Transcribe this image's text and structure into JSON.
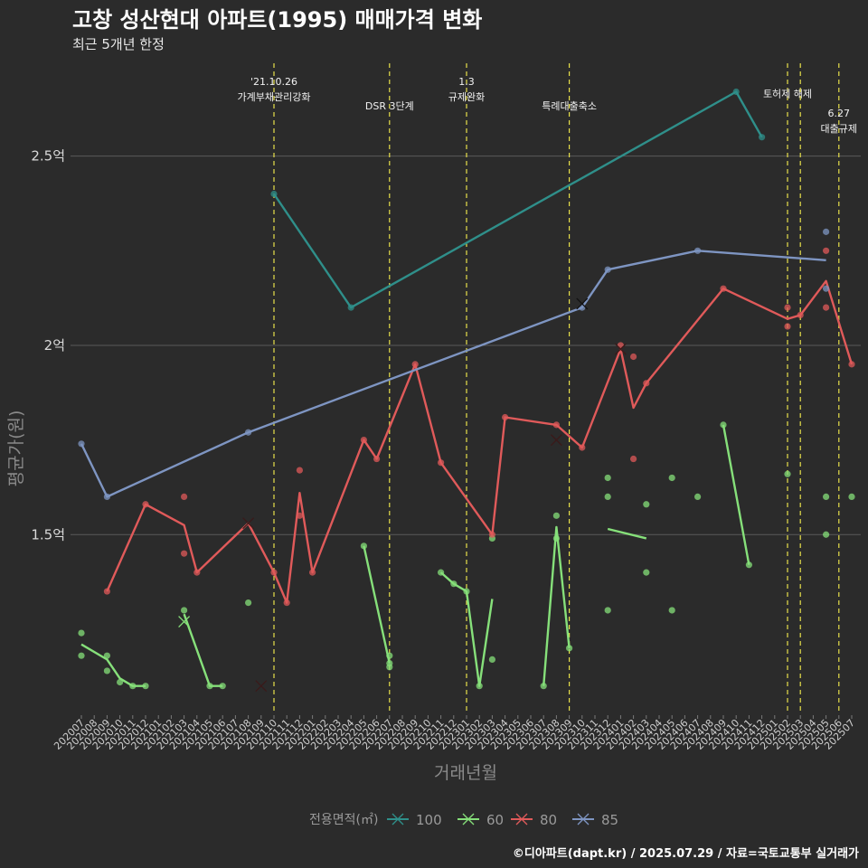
{
  "chart_data": {
    "type": "line",
    "title": "고창 성산현대 아파트(1995) 매매가격 변화",
    "subtitle": "최근 5개년 한정",
    "xlabel": "거래년월",
    "ylabel": "평균가(원)",
    "caption": "©디아파트(dapt.kr) / 2025.07.29 / 자료=국토교통부 실거래가",
    "categories": [
      "202007",
      "202008",
      "202009",
      "202010",
      "202011",
      "202012",
      "202101",
      "202102",
      "202103",
      "202104",
      "202105",
      "202106",
      "202107",
      "202108",
      "202109",
      "202110",
      "202111",
      "202112",
      "202201",
      "202202",
      "202203",
      "202204",
      "202205",
      "202206",
      "202207",
      "202208",
      "202209",
      "202210",
      "202211",
      "202212",
      "202301",
      "202302",
      "202303",
      "202304",
      "202305",
      "202306",
      "202307",
      "202308",
      "202309",
      "202310",
      "202311",
      "202312",
      "202401",
      "202402",
      "202403",
      "202404",
      "202405",
      "202406",
      "202407",
      "202408",
      "202409",
      "202410",
      "202411",
      "202412",
      "202501",
      "202502",
      "202503",
      "202504",
      "202505",
      "202506",
      "202507"
    ],
    "y_ticks": [
      {
        "value": 15000,
        "label": "1.5억"
      },
      {
        "value": 20000,
        "label": "2억"
      },
      {
        "value": 25000,
        "label": "2.5억"
      }
    ],
    "ylim": [
      10300,
      27500
    ],
    "grid": true,
    "legend": {
      "title": "전용면적(㎡)",
      "position": "bottom"
    },
    "series": [
      {
        "name": "100",
        "color": "#2f8f8a",
        "line": [
          [
            "202110",
            24000
          ],
          [
            "202204",
            21000
          ],
          [
            "202410",
            26700
          ],
          [
            "202412",
            25500
          ]
        ],
        "points": [
          [
            "202110",
            24000
          ],
          [
            "202204",
            21000
          ],
          [
            "202410",
            26700
          ],
          [
            "202412",
            25500
          ]
        ],
        "crosses": []
      },
      {
        "name": "60",
        "color": "#86e07a",
        "line_segments": [
          [
            [
              "202007",
              12100
            ],
            [
              "202009",
              11700
            ],
            [
              "202010",
              11200
            ],
            [
              "202011",
              11000
            ],
            [
              "202012",
              11000
            ]
          ],
          [
            [
              "202103",
              12900
            ],
            [
              "202105",
              11000
            ],
            [
              "202106",
              11000
            ]
          ],
          [
            [
              "202205",
              14700
            ],
            [
              "202207",
              11600
            ]
          ],
          [
            [
              "202211",
              14000
            ],
            [
              "202212",
              13700
            ],
            [
              "202301",
              13500
            ],
            [
              "202302",
              11000
            ],
            [
              "202303",
              13300
            ]
          ],
          [
            [
              "202307",
              11000
            ],
            [
              "202308",
              15200
            ],
            [
              "202309",
              12000
            ]
          ],
          [
            [
              "202312",
              15150
            ],
            [
              "202403",
              14900
            ]
          ],
          [
            [
              "202409",
              17900
            ],
            [
              "202411",
              14200
            ]
          ]
        ],
        "points": [
          [
            "202007",
            12400
          ],
          [
            "202007",
            11800
          ],
          [
            "202009",
            11800
          ],
          [
            "202009",
            11400
          ],
          [
            "202010",
            11100
          ],
          [
            "202011",
            11000
          ],
          [
            "202012",
            11000
          ],
          [
            "202103",
            13000
          ],
          [
            "202105",
            11000
          ],
          [
            "202106",
            11000
          ],
          [
            "202108",
            13200
          ],
          [
            "202205",
            14700
          ],
          [
            "202207",
            11800
          ],
          [
            "202207",
            11600
          ],
          [
            "202207",
            11500
          ],
          [
            "202211",
            14000
          ],
          [
            "202212",
            13700
          ],
          [
            "202301",
            13500
          ],
          [
            "202302",
            11000
          ],
          [
            "202303",
            14900
          ],
          [
            "202303",
            11700
          ],
          [
            "202307",
            11000
          ],
          [
            "202308",
            15500
          ],
          [
            "202308",
            14900
          ],
          [
            "202309",
            12000
          ],
          [
            "202312",
            16500
          ],
          [
            "202312",
            16000
          ],
          [
            "202312",
            13000
          ],
          [
            "202403",
            15800
          ],
          [
            "202403",
            14000
          ],
          [
            "202405",
            16500
          ],
          [
            "202405",
            13000
          ],
          [
            "202407",
            16000
          ],
          [
            "202409",
            17900
          ],
          [
            "202411",
            14200
          ],
          [
            "202502",
            16600
          ],
          [
            "202505",
            16000
          ],
          [
            "202505",
            15000
          ],
          [
            "202507",
            16000
          ]
        ],
        "crosses": [
          [
            "202103",
            12700
          ]
        ]
      },
      {
        "name": "80",
        "color": "#e05a5a",
        "line": [
          [
            "202009",
            13500
          ],
          [
            "202012",
            15800
          ],
          [
            "202103",
            15250
          ],
          [
            "202104",
            14000
          ],
          [
            "202108",
            15300
          ],
          [
            "202110",
            14000
          ],
          [
            "202111",
            13200
          ],
          [
            "202112",
            16100
          ],
          [
            "202201",
            14000
          ],
          [
            "202205",
            17500
          ],
          [
            "202206",
            17000
          ],
          [
            "202209",
            19500
          ],
          [
            "202211",
            16900
          ],
          [
            "202303",
            15000
          ],
          [
            "202304",
            18100
          ],
          [
            "202308",
            17900
          ],
          [
            "202310",
            17300
          ],
          [
            "202401",
            19900
          ],
          [
            "202402",
            18350
          ],
          [
            "202403",
            19000
          ],
          [
            "202409",
            21500
          ],
          [
            "202502",
            20700
          ],
          [
            "202503",
            20800
          ],
          [
            "202505",
            21700
          ],
          [
            "202507",
            19500
          ]
        ],
        "points": [
          [
            "202009",
            13500
          ],
          [
            "202012",
            15800
          ],
          [
            "202103",
            16000
          ],
          [
            "202103",
            14500
          ],
          [
            "202104",
            14000
          ],
          [
            "202110",
            14000
          ],
          [
            "202111",
            13200
          ],
          [
            "202112",
            16700
          ],
          [
            "202112",
            15500
          ],
          [
            "202201",
            14000
          ],
          [
            "202205",
            17500
          ],
          [
            "202206",
            17000
          ],
          [
            "202209",
            19500
          ],
          [
            "202211",
            16900
          ],
          [
            "202303",
            15000
          ],
          [
            "202304",
            18100
          ],
          [
            "202308",
            17900
          ],
          [
            "202310",
            17300
          ],
          [
            "202401",
            20000
          ],
          [
            "202402",
            19700
          ],
          [
            "202402",
            17000
          ],
          [
            "202403",
            19000
          ],
          [
            "202409",
            21500
          ],
          [
            "202502",
            21000
          ],
          [
            "202502",
            20500
          ],
          [
            "202503",
            20800
          ],
          [
            "202505",
            22500
          ],
          [
            "202505",
            21000
          ],
          [
            "202507",
            19500
          ]
        ],
        "crosses": [
          [
            "202108",
            15300
          ],
          [
            "202109",
            11000
          ],
          [
            "202308",
            17500
          ],
          [
            "202401",
            19900
          ]
        ]
      },
      {
        "name": "85",
        "color": "#7e95c2",
        "line": [
          [
            "202007",
            17400
          ],
          [
            "202009",
            16000
          ],
          [
            "202108",
            17700
          ],
          [
            "202310",
            21000
          ],
          [
            "202312",
            22000
          ],
          [
            "202407",
            22500
          ],
          [
            "202505",
            22250
          ]
        ],
        "points": [
          [
            "202007",
            17400
          ],
          [
            "202009",
            16000
          ],
          [
            "202108",
            17700
          ],
          [
            "202310",
            21000
          ],
          [
            "202312",
            22000
          ],
          [
            "202407",
            22500
          ],
          [
            "202505",
            23000
          ],
          [
            "202505",
            21500
          ]
        ],
        "crosses": [
          [
            "202310",
            21100
          ]
        ]
      }
    ],
    "events": [
      {
        "x": "202110",
        "label": [
          "'21.10.26",
          "가계부채관리강화"
        ],
        "label_row": 1
      },
      {
        "x": "202207",
        "label": [
          "DSR 3단계"
        ],
        "label_row": 2
      },
      {
        "x": "202301",
        "label": [
          "1.3",
          "규제완화"
        ],
        "label_row": 1
      },
      {
        "x": "202309",
        "label": [
          "특례대출축소"
        ],
        "label_row": 2
      },
      {
        "x": "202502",
        "label": [
          "토허제 해제"
        ],
        "label_row": 1.5
      },
      {
        "x": "202503",
        "label": [],
        "label_row": 1
      },
      {
        "x": "202506",
        "label": [
          "6.27",
          "대출규제"
        ],
        "label_row": 2.3
      }
    ]
  }
}
